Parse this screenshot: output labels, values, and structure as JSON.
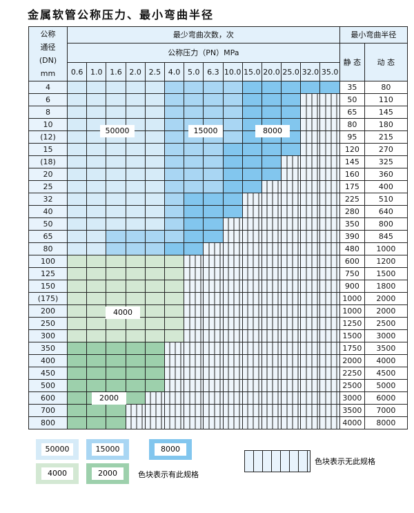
{
  "title": "金属软管公称压力、最小弯曲半径",
  "header": {
    "dn_label": [
      "公称",
      "通径",
      "(DN)",
      "mm"
    ],
    "cycles": "最少弯曲次数，次",
    "pressure": "公称压力（PN）MPa",
    "radius": "最小弯曲半径",
    "static": "静 态",
    "dynamic": "动 态",
    "pressures": [
      "0.6",
      "1.0",
      "1.6",
      "2.0",
      "2.5",
      "4.0",
      "5.0",
      "6.3",
      "10.0",
      "15.0",
      "20.0",
      "25.0",
      "32.0",
      "35.0"
    ]
  },
  "rows": [
    {
      "dn": "4",
      "cells": "LLLLLMMMMDDDDD",
      "static": "35",
      "dynamic": "80"
    },
    {
      "dn": "6",
      "cells": "LLLLLMMMMDDD",
      "static": "50",
      "dynamic": "110"
    },
    {
      "dn": "8",
      "cells": "LLLLLMMMMDDD",
      "static": "65",
      "dynamic": "145"
    },
    {
      "dn": "10",
      "cells": "LLLLLMMMMDDD",
      "static": "80",
      "dynamic": "180"
    },
    {
      "dn": "(12)",
      "cells": "LLLLLMMMMDDD",
      "static": "95",
      "dynamic": "215"
    },
    {
      "dn": "15",
      "cells": "LLLLLMMMDDDD",
      "static": "120",
      "dynamic": "270"
    },
    {
      "dn": "(18)",
      "cells": "LLLLLMMMDDD",
      "static": "145",
      "dynamic": "325"
    },
    {
      "dn": "20",
      "cells": "LLLLLMMMDDD",
      "static": "160",
      "dynamic": "360"
    },
    {
      "dn": "25",
      "cells": "LLLLLMMMDD",
      "static": "175",
      "dynamic": "400"
    },
    {
      "dn": "32",
      "cells": "LLLLLMDDD",
      "static": "225",
      "dynamic": "510"
    },
    {
      "dn": "40",
      "cells": "LLLLLMDDD",
      "static": "280",
      "dynamic": "640"
    },
    {
      "dn": "50",
      "cells": "LLLLLMDD",
      "static": "350",
      "dynamic": "800"
    },
    {
      "dn": "65",
      "cells": "LLMMMMDD",
      "static": "390",
      "dynamic": "845"
    },
    {
      "dn": "80",
      "cells": "LLMMMDD",
      "static": "480",
      "dynamic": "1000"
    },
    {
      "dn": "100",
      "cells": "GGGGGG",
      "static": "600",
      "dynamic": "1200"
    },
    {
      "dn": "125",
      "cells": "GGGGGG",
      "static": "750",
      "dynamic": "1500"
    },
    {
      "dn": "150",
      "cells": "GGGGGG",
      "static": "900",
      "dynamic": "1800"
    },
    {
      "dn": "(175)",
      "cells": "GGGGGG",
      "static": "1000",
      "dynamic": "2000"
    },
    {
      "dn": "200",
      "cells": "GGGGGG",
      "static": "1000",
      "dynamic": "2000"
    },
    {
      "dn": "250",
      "cells": "GGGGGG",
      "static": "1250",
      "dynamic": "2500"
    },
    {
      "dn": "300",
      "cells": "GGGGGG",
      "static": "1500",
      "dynamic": "3000"
    },
    {
      "dn": "350",
      "cells": "HHHHH",
      "static": "1750",
      "dynamic": "3500"
    },
    {
      "dn": "400",
      "cells": "HHHHH",
      "static": "2000",
      "dynamic": "4000"
    },
    {
      "dn": "450",
      "cells": "HHHHH",
      "static": "2250",
      "dynamic": "4500"
    },
    {
      "dn": "500",
      "cells": "HHHHH",
      "static": "2500",
      "dynamic": "5000"
    },
    {
      "dn": "600",
      "cells": "HHHH",
      "static": "3000",
      "dynamic": "6000"
    },
    {
      "dn": "700",
      "cells": "HHH",
      "static": "3500",
      "dynamic": "7000"
    },
    {
      "dn": "800",
      "cells": "HHH",
      "static": "4000",
      "dynamic": "8000"
    }
  ],
  "region_labels": [
    "50000",
    "15000",
    "8000",
    "4000",
    "2000"
  ],
  "legend": {
    "items": [
      {
        "label": "50000",
        "color": "#d6ebf8"
      },
      {
        "label": "15000",
        "color": "#a9d6f3"
      },
      {
        "label": "8000",
        "color": "#82c6ee"
      },
      {
        "label": "4000",
        "color": "#d3e8d3"
      },
      {
        "label": "2000",
        "color": "#9dd0ac"
      }
    ],
    "has_spec": "色块表示有此规格",
    "no_spec": "色块表示无此规格"
  }
}
